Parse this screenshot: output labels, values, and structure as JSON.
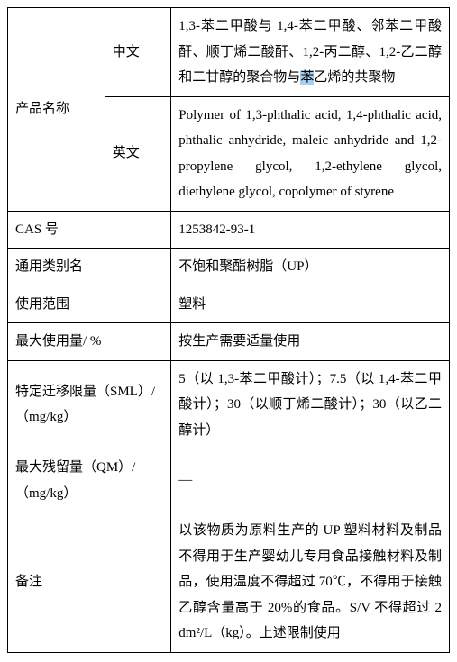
{
  "table": {
    "rows": {
      "product_name": {
        "label": "产品名称",
        "sublabels": {
          "zh": "中文",
          "en": "英文"
        },
        "zh_value_pre": "1,3-苯二甲酸与 1,4-苯二甲酸、邻苯二甲酸酐、顺丁烯二酸酐、1,2-丙二醇、1,2-乙二醇和二甘醇的聚合物与",
        "zh_highlight": "苯",
        "zh_value_post": "乙烯的共聚物",
        "en_value": "Polymer of 1,3-phthalic acid, 1,4-phthalic acid, phthalic anhydride, maleic anhydride and 1,2-propylene glycol, 1,2-ethylene glycol, diethylene glycol, copolymer of styrene"
      },
      "cas": {
        "label": "CAS 号",
        "value": "1253842-93-1"
      },
      "generic_name": {
        "label": "通用类别名",
        "value": "不饱和聚酯树脂（UP）"
      },
      "scope": {
        "label": "使用范围",
        "value": "塑料"
      },
      "max_usage": {
        "label": "最大使用量/ %",
        "value": "按生产需要适量使用"
      },
      "sml": {
        "label": "特定迁移限量（SML）/（mg/kg）",
        "value": "5（以 1,3-苯二甲酸计）；7.5（以 1,4-苯二甲酸计）；30（以顺丁烯二酸计）；30（以乙二醇计）"
      },
      "qm": {
        "label": "最大残留量（QM）/（mg/kg）",
        "value": "—"
      },
      "notes": {
        "label": "备注",
        "value": "以该物质为原料生产的 UP 塑料材料及制品不得用于生产婴幼儿专用食品接触材料及制品，使用温度不得超过 70℃，不得用于接触乙醇含量高于 20%的食品。S/V 不得超过 2 dm²/L（kg）。上述限制使用"
      }
    }
  },
  "style": {
    "font_family": "SimSun",
    "base_font_size_pt": 11,
    "line_height": 1.9,
    "text_color": "#000000",
    "border_color": "#000000",
    "background_color": "#ffffff",
    "highlight_color": "rgba(0,120,215,0.35)",
    "column_widths_pct": [
      22,
      15,
      63
    ]
  }
}
